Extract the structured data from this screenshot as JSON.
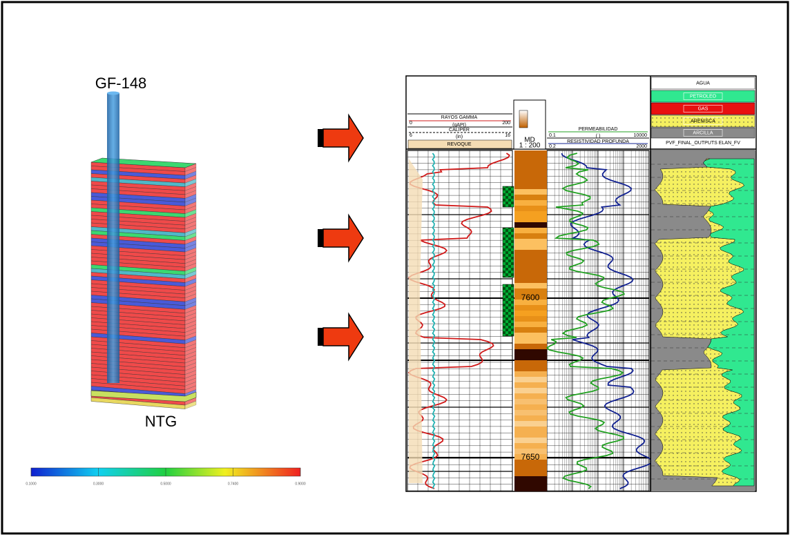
{
  "well_model": {
    "well_name": "GF-148",
    "property": "NTG",
    "colorbar_labels": [
      "0.1000",
      "0.3000",
      "0.5000",
      "0.7400",
      "0.9000"
    ]
  },
  "log_header": {
    "gamma": {
      "name": "RAYOS GAMMA",
      "unit": "(gAPI)",
      "min": "0",
      "max": "200"
    },
    "caliper": {
      "name": "CALIPER",
      "unit": "(in)",
      "min": "6",
      "max": "16"
    },
    "mudcake": "REVOQUE",
    "depth": {
      "name": "MD",
      "scale": "1 : 200"
    },
    "permeability": {
      "name": "PERMEABILIDAD",
      "unit": "( )",
      "min": "0.1",
      "max": "10000"
    },
    "resistivity": {
      "name": "RESISTIVIDAD PROFUNDA",
      "min": "0.2",
      "max": "2000"
    },
    "lithology": {
      "water": "AGUA",
      "oil": "PETROLEO",
      "gas": "GAS",
      "sandstone": "ARENISCA",
      "clay": "ARCILLA",
      "track": "PVF_FINAL_OUTPUTS ELAN_FV"
    }
  },
  "depth_labels": [
    "7600",
    "7650"
  ]
}
